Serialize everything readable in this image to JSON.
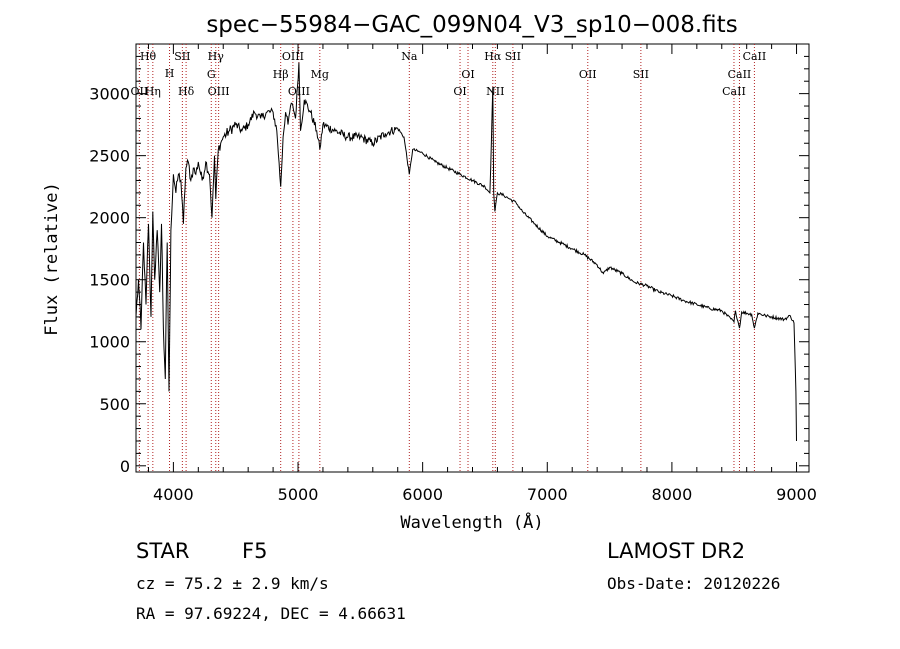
{
  "chart_data": {
    "type": "line",
    "title": "spec−55984−GAC_099N04_V3_sp10−008.fits",
    "xlabel": "Wavelength (Å)",
    "ylabel": "Flux (relative)",
    "xlim": [
      3700,
      9100
    ],
    "ylim": [
      -50,
      3400
    ],
    "x_ticks": [
      4000,
      5000,
      6000,
      7000,
      8000,
      9000
    ],
    "y_ticks": [
      0,
      500,
      1000,
      1500,
      2000,
      2500,
      3000
    ],
    "grid": false,
    "series": [
      {
        "x": [
          3700,
          3720,
          3740,
          3760,
          3780,
          3800,
          3820,
          3835,
          3850,
          3870,
          3890,
          3905,
          3920,
          3935,
          3950,
          3965,
          3980,
          4000,
          4020,
          4040,
          4060,
          4080,
          4100,
          4120,
          4140,
          4160,
          4180,
          4200,
          4230,
          4260,
          4290,
          4310,
          4330,
          4340,
          4360,
          4380,
          4400,
          4450,
          4500,
          4550,
          4600,
          4650,
          4700,
          4750,
          4800,
          4830,
          4861,
          4880,
          4900,
          4920,
          4940,
          4959,
          4980,
          5007,
          5020,
          5050,
          5100,
          5150,
          5175,
          5200,
          5300,
          5400,
          5500,
          5600,
          5700,
          5800,
          5850,
          5893,
          5920,
          6000,
          6100,
          6200,
          6300,
          6400,
          6500,
          6540,
          6563,
          6570,
          6580,
          6600,
          6650,
          6700,
          6750,
          6800,
          6900,
          7000,
          7100,
          7200,
          7300,
          7400,
          7450,
          7500,
          7600,
          7700,
          7800,
          7900,
          8000,
          8100,
          8200,
          8300,
          8400,
          8498,
          8510,
          8542,
          8560,
          8600,
          8640,
          8662,
          8690,
          8750,
          8800,
          8900,
          8950,
          8980,
          8995,
          9000
        ],
        "y": [
          1200,
          1500,
          1100,
          1800,
          1300,
          1950,
          1200,
          2050,
          1500,
          1900,
          1400,
          1950,
          1100,
          700,
          1800,
          600,
          1900,
          2350,
          2200,
          2350,
          2300,
          1950,
          2400,
          2450,
          2300,
          2400,
          2350,
          2450,
          2300,
          2450,
          2350,
          2000,
          2500,
          2150,
          2550,
          2600,
          2650,
          2700,
          2750,
          2700,
          2750,
          2850,
          2800,
          2850,
          2850,
          2700,
          2250,
          2650,
          2850,
          2750,
          2900,
          2900,
          2800,
          3250,
          2700,
          2950,
          2850,
          2700,
          2550,
          2750,
          2700,
          2650,
          2650,
          2600,
          2680,
          2720,
          2650,
          2350,
          2550,
          2520,
          2450,
          2400,
          2350,
          2300,
          2250,
          2200,
          3050,
          2200,
          2050,
          2200,
          2180,
          2150,
          2120,
          2050,
          1950,
          1850,
          1800,
          1750,
          1700,
          1620,
          1550,
          1600,
          1550,
          1480,
          1450,
          1400,
          1370,
          1330,
          1300,
          1270,
          1250,
          1160,
          1250,
          1110,
          1240,
          1230,
          1220,
          1110,
          1230,
          1210,
          1200,
          1180,
          1210,
          1150,
          600,
          200
        ]
      }
    ],
    "emission_lines": [
      {
        "label": "Hθ",
        "wave": 3797,
        "row": 0
      },
      {
        "label": "OII",
        "wave": 3727,
        "row": 3
      },
      {
        "label": "Hη",
        "wave": 3835,
        "row": 3
      },
      {
        "label": "H",
        "wave": 3969,
        "row": 1
      },
      {
        "label": "SII",
        "wave": 4072,
        "row": 0
      },
      {
        "label": "Hδ",
        "wave": 4102,
        "row": 3
      },
      {
        "label": "Hγ",
        "wave": 4340,
        "row": 0
      },
      {
        "label": "G",
        "wave": 4304,
        "row": 2
      },
      {
        "label": "OIII",
        "wave": 4363,
        "row": 3
      },
      {
        "label": "OIII",
        "wave": 4959,
        "row": 0
      },
      {
        "label": "Hβ",
        "wave": 4861,
        "row": 2
      },
      {
        "label": "OIII",
        "wave": 5007,
        "row": 3
      },
      {
        "label": "Mg",
        "wave": 5175,
        "row": 2
      },
      {
        "label": "Na",
        "wave": 5893,
        "row": 0
      },
      {
        "label": "OI",
        "wave": 6364,
        "row": 2
      },
      {
        "label": "OI",
        "wave": 6300,
        "row": 3
      },
      {
        "label": "Hα",
        "wave": 6563,
        "row": 0
      },
      {
        "label": "SII",
        "wave": 6724,
        "row": 0
      },
      {
        "label": "NII",
        "wave": 6583,
        "row": 3
      },
      {
        "label": "OII",
        "wave": 7325,
        "row": 2
      },
      {
        "label": "SII",
        "wave": 7751,
        "row": 2
      },
      {
        "label": "CaII",
        "wave": 8662,
        "row": 0
      },
      {
        "label": "CaII",
        "wave": 8542,
        "row": 2
      },
      {
        "label": "CaII",
        "wave": 8498,
        "row": 3
      }
    ]
  },
  "info": {
    "object_type": "STAR",
    "subclass": "F5",
    "survey": "LAMOST DR2",
    "redshift": "cz =  75.2 ±  2.9 km/s",
    "obs_date": "Obs-Date: 20120226",
    "coords": "RA =  97.69224, DEC =   4.66631"
  }
}
